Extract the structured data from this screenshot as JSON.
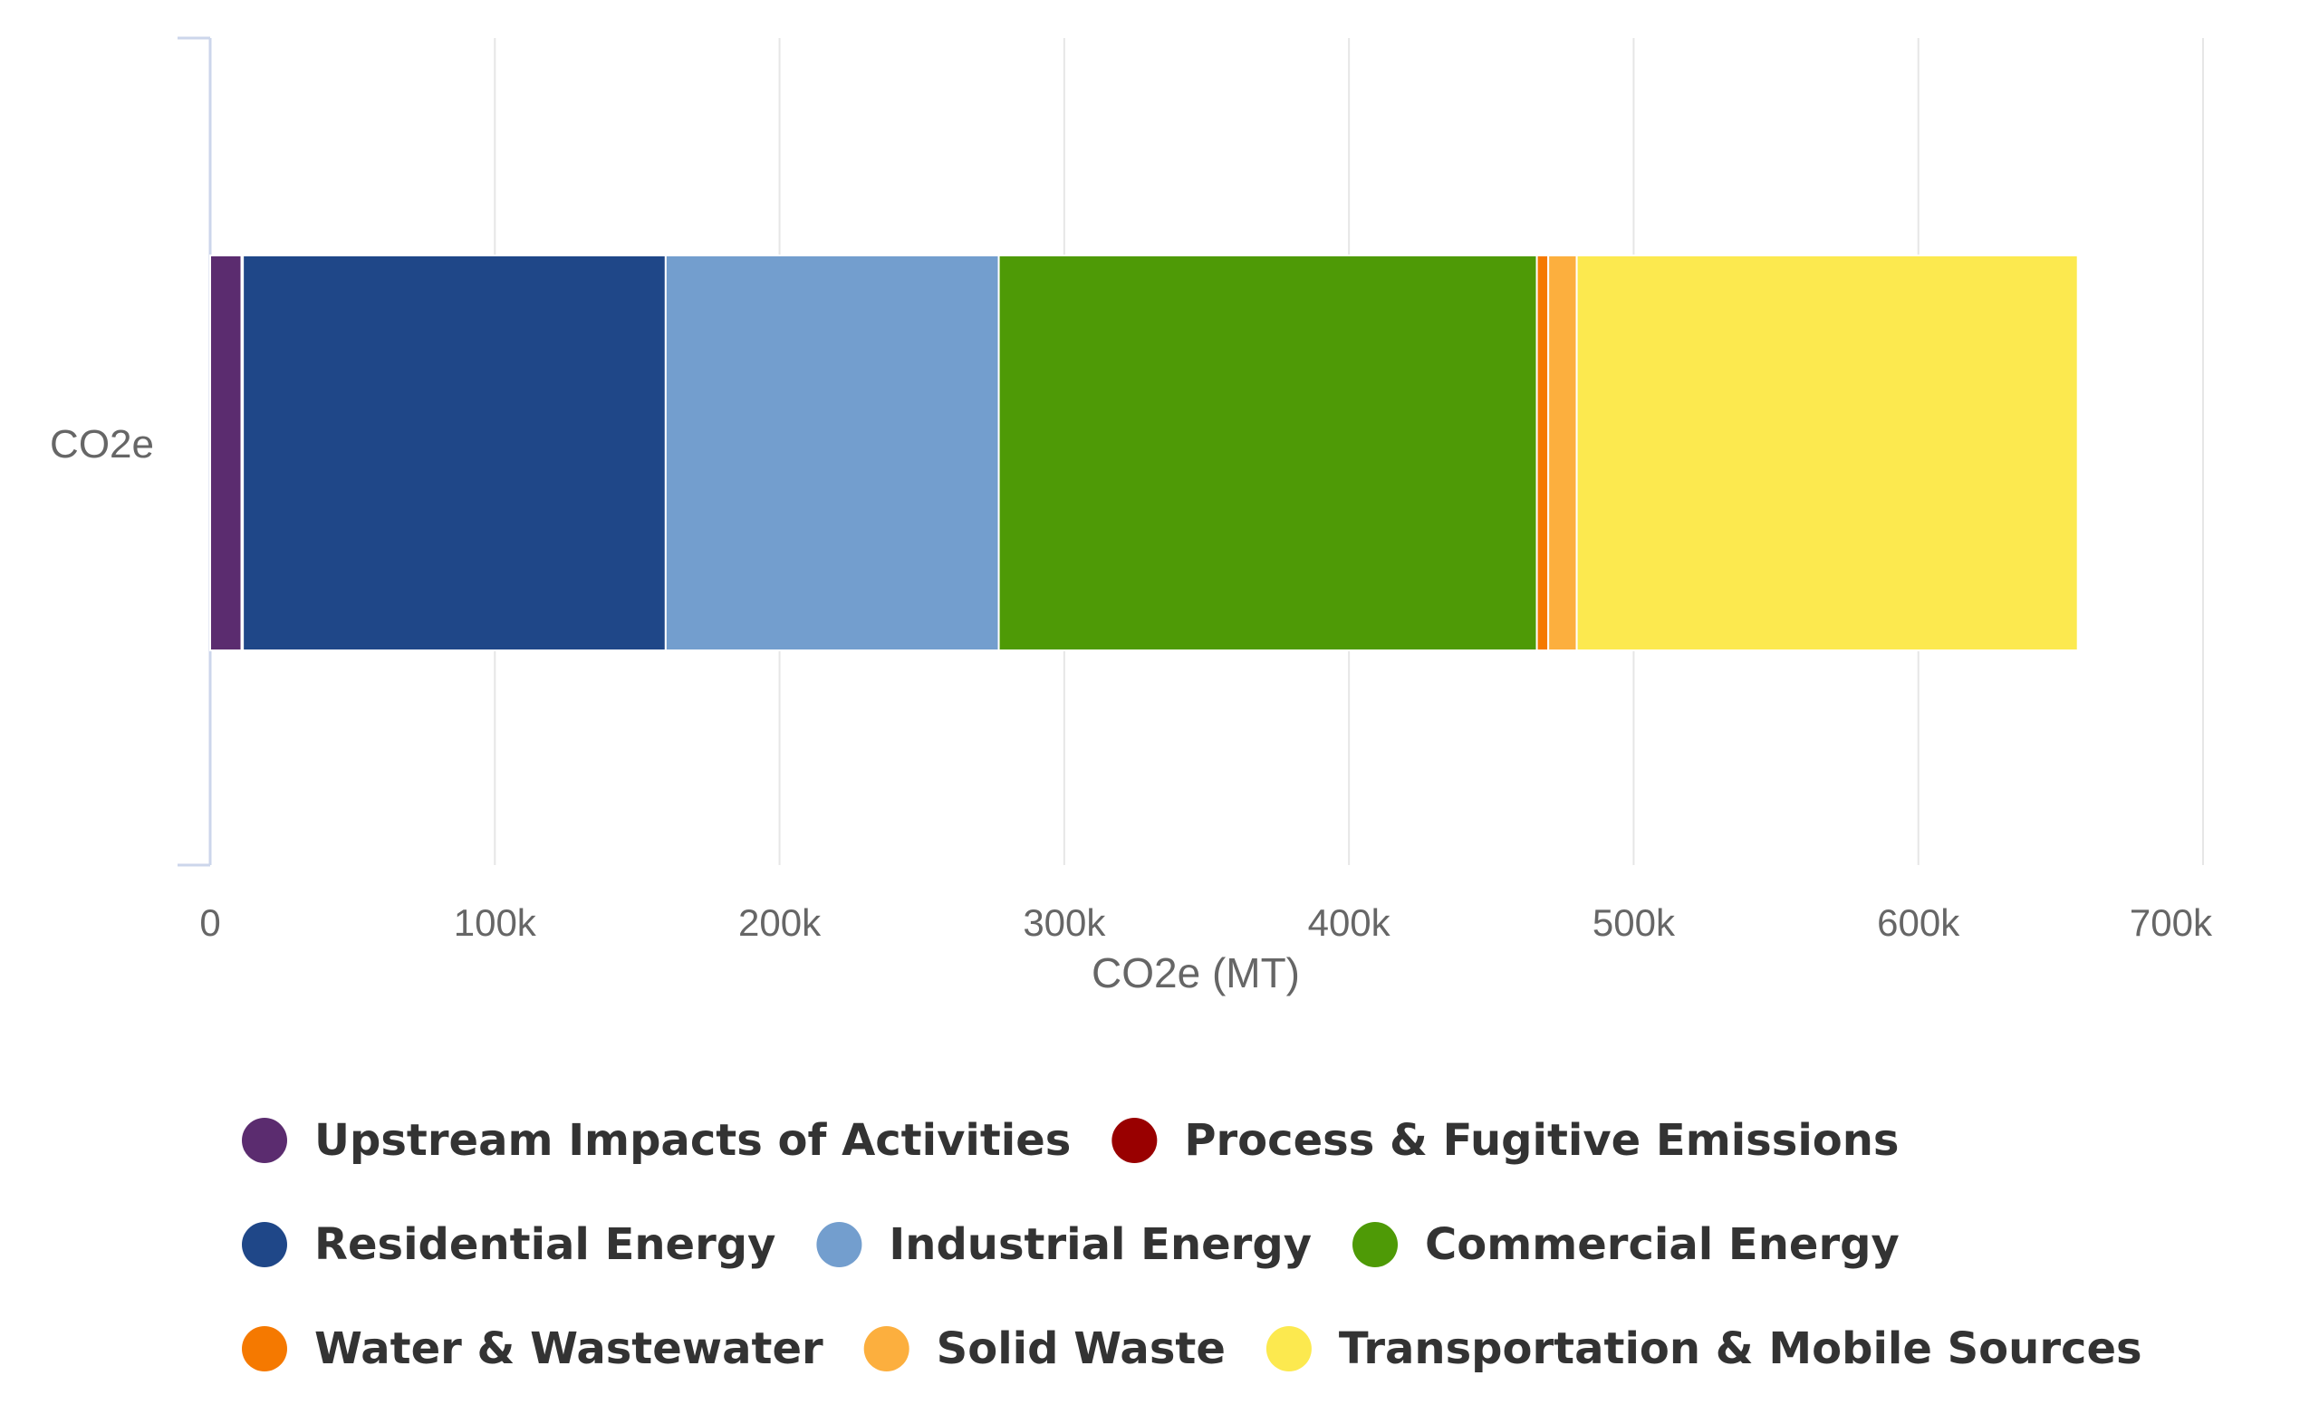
{
  "chart_data": {
    "type": "bar",
    "orientation": "horizontal",
    "stacked": true,
    "categories": [
      "CO2e"
    ],
    "xlabel": "CO2e (MT)",
    "xlim": [
      0,
      700000
    ],
    "x_ticks": [
      "0",
      "100k",
      "200k",
      "300k",
      "400k",
      "500k",
      "600k",
      "700k"
    ],
    "grid": true,
    "legend_position": "bottom",
    "series": [
      {
        "name": "Upstream Impacts of Activities",
        "color": "#5b2c6f",
        "values": [
          11000
        ]
      },
      {
        "name": "Process & Fugitive Emissions",
        "color": "#990000",
        "values": [
          500
        ]
      },
      {
        "name": "Residential Energy",
        "color": "#1f4788",
        "values": [
          148500
        ]
      },
      {
        "name": "Industrial Energy",
        "color": "#739ece",
        "values": [
          117000
        ]
      },
      {
        "name": "Commercial Energy",
        "color": "#4e9a06",
        "values": [
          189000
        ]
      },
      {
        "name": "Water & Wastewater",
        "color": "#f57900",
        "values": [
          4000
        ]
      },
      {
        "name": "Solid Waste",
        "color": "#fcaf3e",
        "values": [
          10000
        ]
      },
      {
        "name": "Transportation & Mobile Sources",
        "color": "#fce94f",
        "values": [
          176000
        ]
      }
    ]
  }
}
